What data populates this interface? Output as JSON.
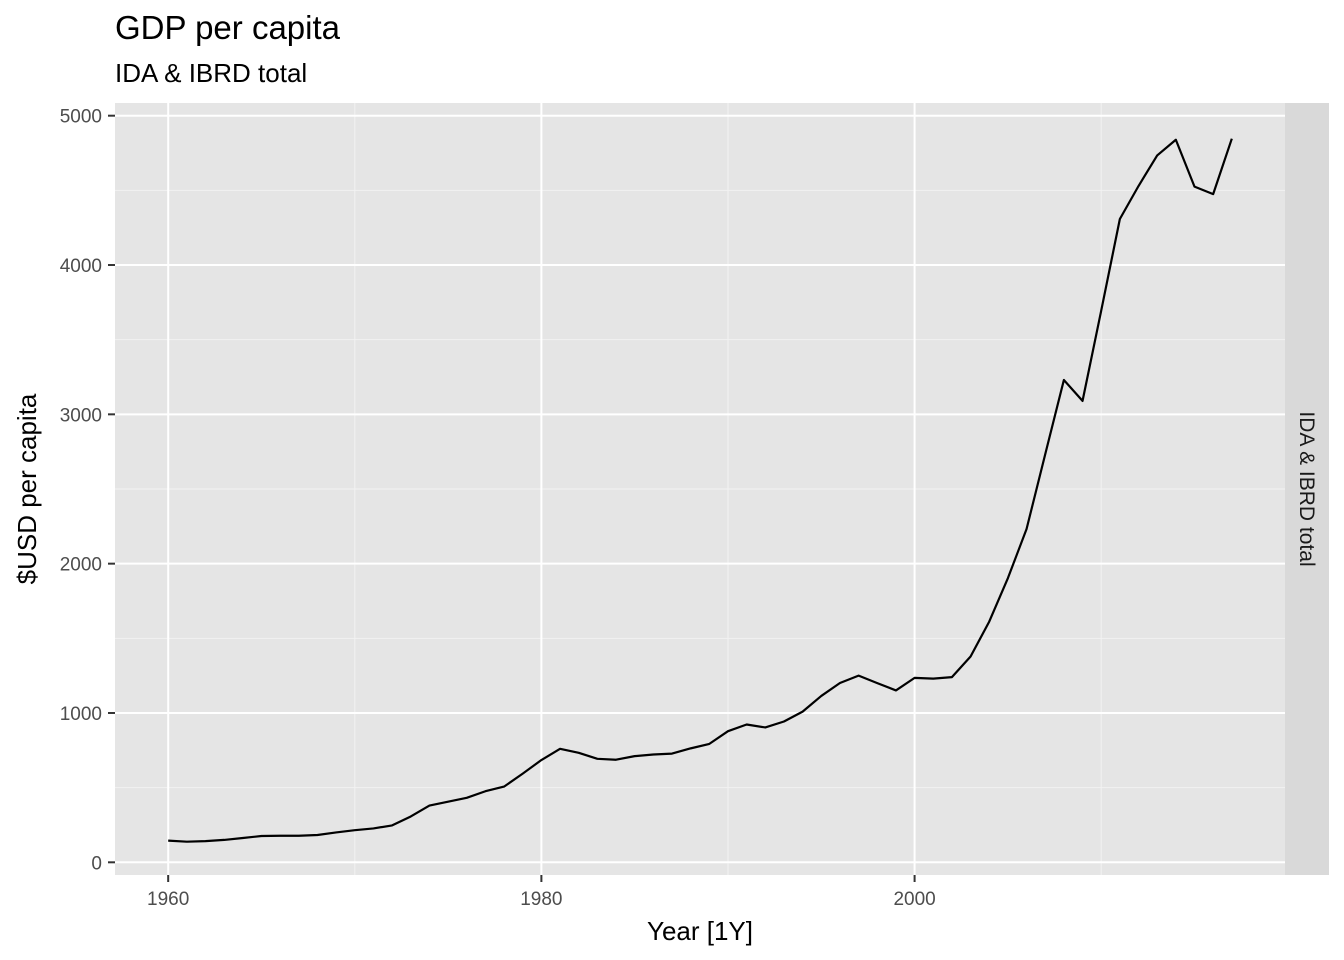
{
  "chart_data": {
    "type": "line",
    "title": "GDP per capita",
    "subtitle": "IDA & IBRD total",
    "xlabel": "Year [1Y]",
    "ylabel": "$USD per capita",
    "facet_label": "IDA & IBRD total",
    "xlim": [
      1957.15,
      2019.85
    ],
    "ylim": [
      -85,
      5085
    ],
    "x_ticks": [
      1960,
      1980,
      2000
    ],
    "x_tick_labels": [
      "1960",
      "1980",
      "2000"
    ],
    "y_ticks": [
      0,
      1000,
      2000,
      3000,
      4000,
      5000
    ],
    "y_tick_labels": [
      "0",
      "1000",
      "2000",
      "3000",
      "4000",
      "5000"
    ],
    "grid": true,
    "line_color": "#000000",
    "panel_background": "#e5e5e5",
    "strip_background": "#d9d9d9",
    "series": [
      {
        "x": [
          1960,
          1961,
          1962,
          1963,
          1964,
          1965,
          1966,
          1967,
          1968,
          1969,
          1970,
          1971,
          1972,
          1973,
          1974,
          1975,
          1976,
          1977,
          1978,
          1979,
          1980,
          1981,
          1982,
          1983,
          1984,
          1985,
          1986,
          1987,
          1988,
          1989,
          1990,
          1991,
          1992,
          1993,
          1994,
          1995,
          1996,
          1997,
          1998,
          1999,
          2000,
          2001,
          2002,
          2003,
          2004,
          2005,
          2006,
          2007,
          2008,
          2009,
          2010,
          2011,
          2012,
          2013,
          2014,
          2015,
          2016,
          2017
        ],
        "values": [
          145,
          138,
          142,
          150,
          163,
          176,
          178,
          178,
          183,
          200,
          215,
          227,
          247,
          307,
          380,
          406,
          432,
          476,
          507,
          594,
          685,
          760,
          733,
          693,
          687,
          711,
          722,
          728,
          763,
          793,
          878,
          923,
          903,
          943,
          1009,
          1114,
          1201,
          1250,
          1200,
          1151,
          1235,
          1230,
          1240,
          1378,
          1612,
          1903,
          2232,
          2733,
          3230,
          3090,
          3694,
          4308,
          4529,
          4734,
          4839,
          4525,
          4475,
          4846
        ]
      }
    ]
  }
}
